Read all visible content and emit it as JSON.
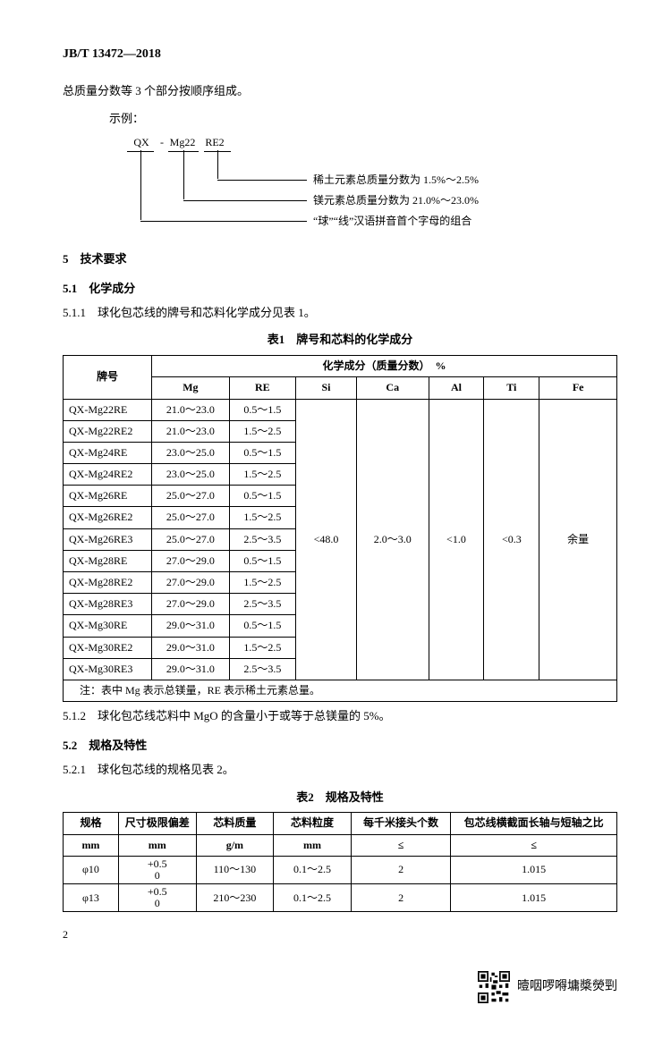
{
  "header": {
    "code": "JB/T 13472—2018"
  },
  "intro": {
    "line1": "总质量分数等 3 个部分按顺序组成。",
    "example_label": "示例：",
    "codes": {
      "a": "QX",
      "sep": "-",
      "b": "Mg22",
      "c": "RE2"
    },
    "desc1": "稀土元素总质量分数为 1.5%～2.5%",
    "desc2": "镁元素总质量分数为 21.0%～23.0%",
    "desc3": "“球”“线”汉语拼音首个字母的组合"
  },
  "sec5": {
    "num": "5",
    "title": "技术要求"
  },
  "sec51": {
    "num": "5.1",
    "title": "化学成分"
  },
  "clause511": "5.1.1　球化包芯线的牌号和芯料化学成分见表 1。",
  "table1": {
    "title": "表1　牌号和芯料的化学成分",
    "head_grade": "牌号",
    "head_group": "化学成分（质量分数）　%",
    "cols": [
      "Mg",
      "RE",
      "Si",
      "Ca",
      "Al",
      "Ti",
      "Fe"
    ],
    "rows": [
      {
        "grade": "QX-Mg22RE",
        "mg": "21.0～23.0",
        "re": "0.5～1.5"
      },
      {
        "grade": "QX-Mg22RE2",
        "mg": "21.0～23.0",
        "re": "1.5～2.5"
      },
      {
        "grade": "QX-Mg24RE",
        "mg": "23.0～25.0",
        "re": "0.5～1.5"
      },
      {
        "grade": "QX-Mg24RE2",
        "mg": "23.0～25.0",
        "re": "1.5～2.5"
      },
      {
        "grade": "QX-Mg26RE",
        "mg": "25.0～27.0",
        "re": "0.5～1.5"
      },
      {
        "grade": "QX-Mg26RE2",
        "mg": "25.0～27.0",
        "re": "1.5～2.5"
      },
      {
        "grade": "QX-Mg26RE3",
        "mg": "25.0～27.0",
        "re": "2.5～3.5"
      },
      {
        "grade": "QX-Mg28RE",
        "mg": "27.0～29.0",
        "re": "0.5～1.5"
      },
      {
        "grade": "QX-Mg28RE2",
        "mg": "27.0～29.0",
        "re": "1.5～2.5"
      },
      {
        "grade": "QX-Mg28RE3",
        "mg": "27.0～29.0",
        "re": "2.5～3.5"
      },
      {
        "grade": "QX-Mg30RE",
        "mg": "29.0～31.0",
        "re": "0.5～1.5"
      },
      {
        "grade": "QX-Mg30RE2",
        "mg": "29.0～31.0",
        "re": "1.5～2.5"
      },
      {
        "grade": "QX-Mg30RE3",
        "mg": "29.0～31.0",
        "re": "2.5～3.5"
      }
    ],
    "shared": {
      "si": "<48.0",
      "ca": "2.0～3.0",
      "al": "<1.0",
      "ti": "<0.3",
      "fe": "余量"
    },
    "note": "注：表中 Mg 表示总镁量，RE 表示稀土元素总量。"
  },
  "clause512": "5.1.2　球化包芯线芯料中 MgO 的含量小于或等于总镁量的 5%。",
  "sec52": {
    "num": "5.2",
    "title": "规格及特性"
  },
  "clause521": "5.2.1　球化包芯线的规格见表 2。",
  "table2": {
    "title": "表2　规格及特性",
    "head": {
      "spec": "规格",
      "spec_u": "mm",
      "tol": "尺寸极限偏差",
      "tol_u": "mm",
      "mass": "芯料质量",
      "mass_u": "g/m",
      "grain": "芯料粒度",
      "grain_u": "mm",
      "joints": "每千米接头个数",
      "joints_u": "≤",
      "ratio": "包芯线横截面长轴与短轴之比",
      "ratio_u": "≤"
    },
    "rows": [
      {
        "spec": "φ10",
        "tol_top": "+0.5",
        "tol_bot": "0",
        "mass": "110～130",
        "grain": "0.1～2.5",
        "joints": "2",
        "ratio": "1.015"
      },
      {
        "spec": "φ13",
        "tol_top": "+0.5",
        "tol_bot": "0",
        "mass": "210～230",
        "grain": "0.1～2.5",
        "joints": "2",
        "ratio": "1.015"
      }
    ]
  },
  "page_num": "2",
  "footer": {
    "text": "曀咽啰嘚墉槳熒剄"
  }
}
